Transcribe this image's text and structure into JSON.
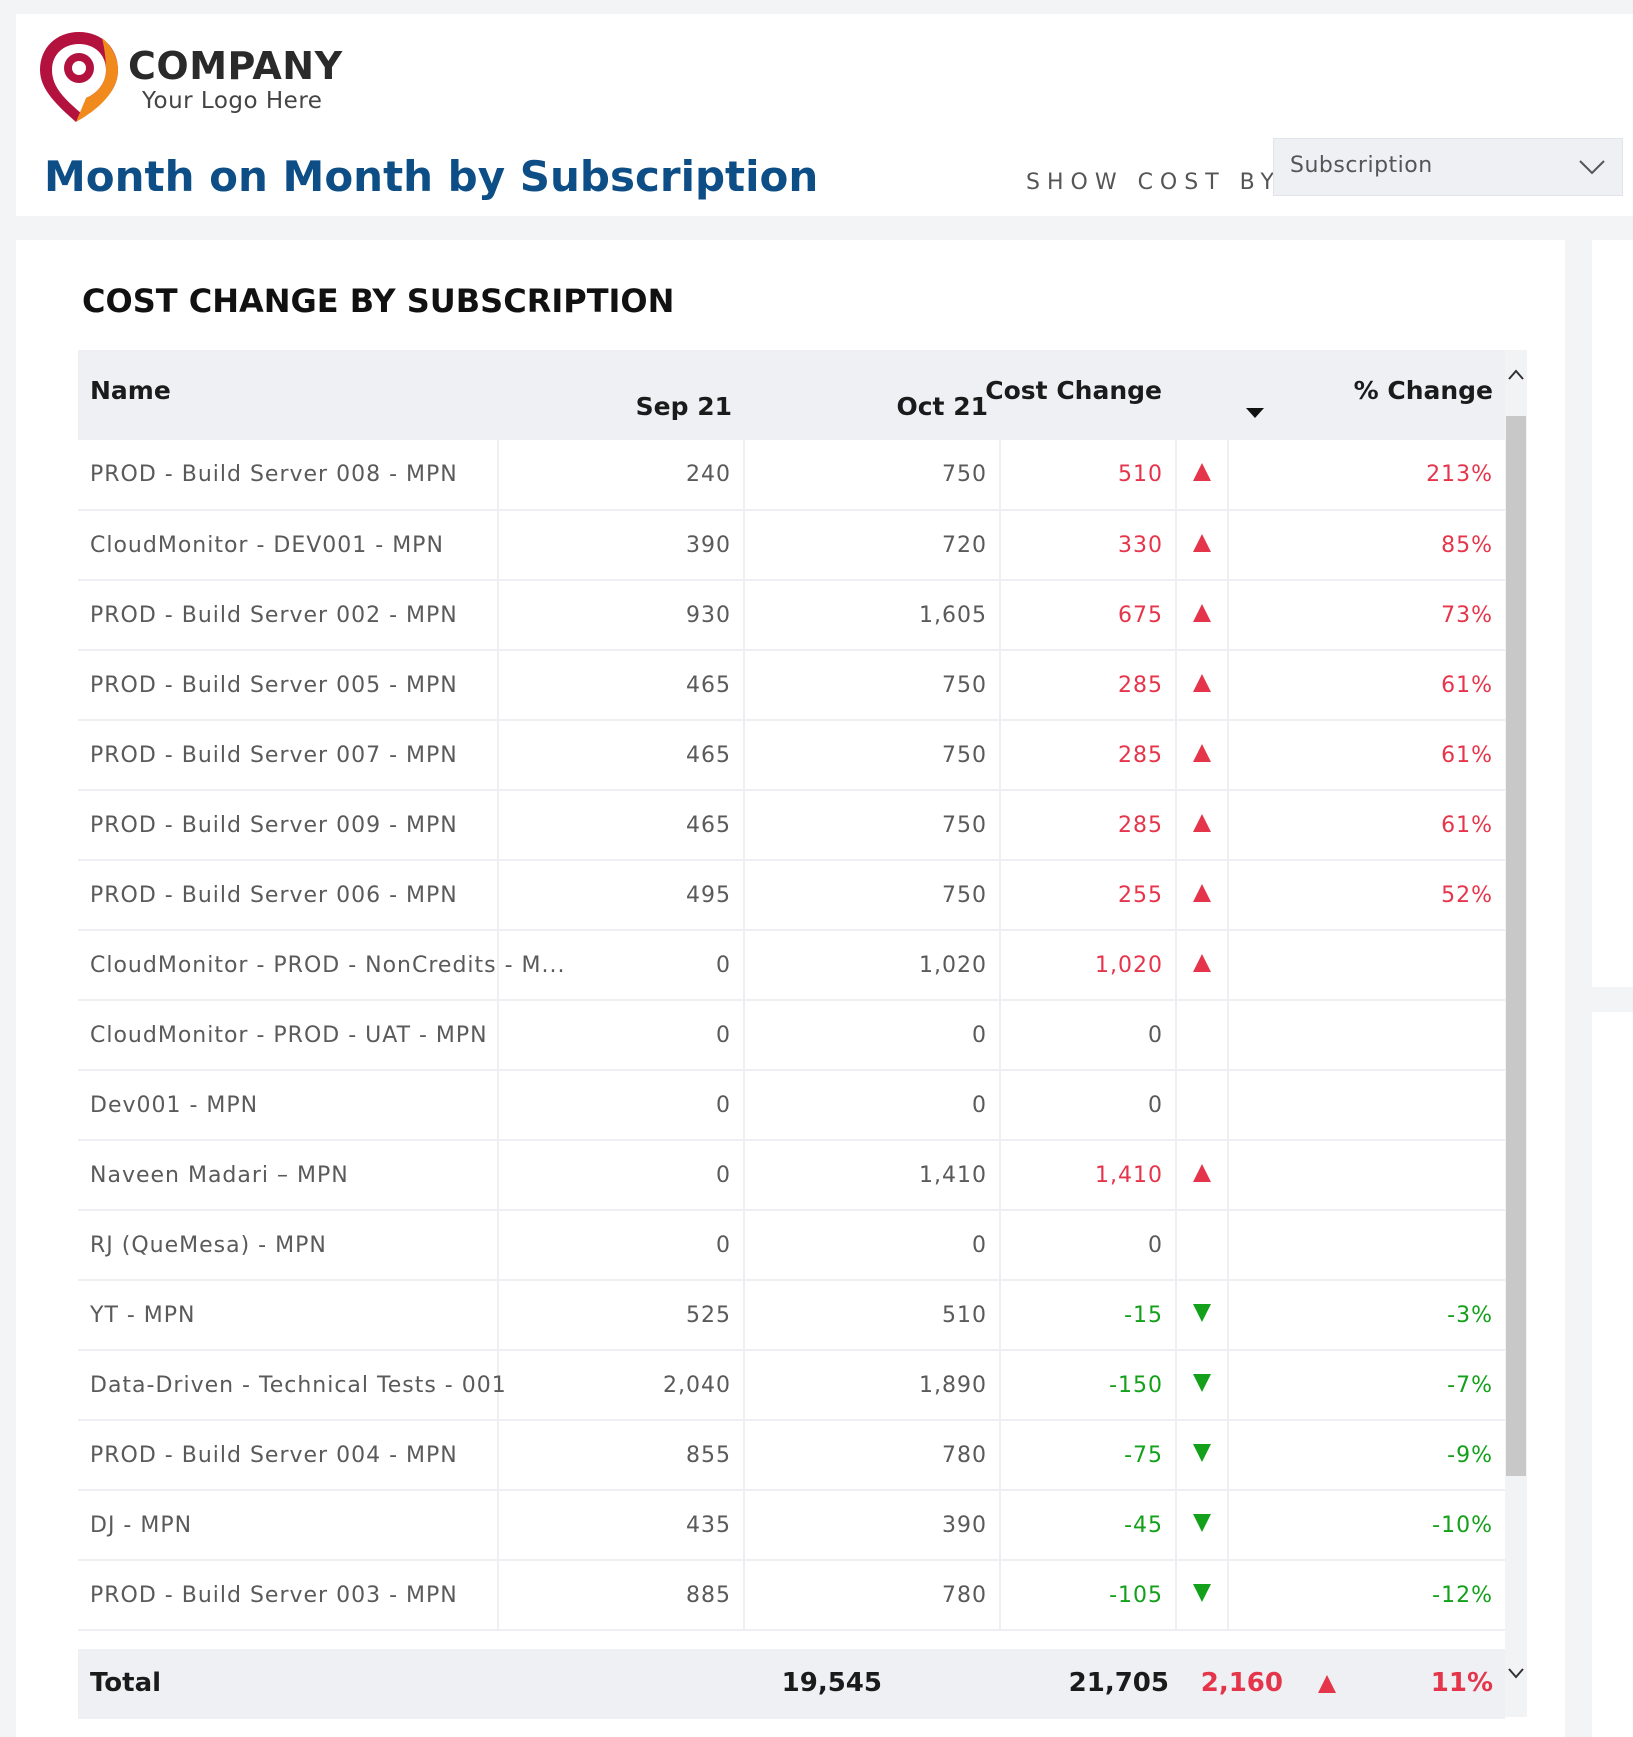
{
  "brand": {
    "name": "COMPANY",
    "tagline": "Your Logo Here"
  },
  "page": {
    "title": "Month on Month by Subscription"
  },
  "filter": {
    "label": "SHOW COST BY",
    "value": "Subscription"
  },
  "section": {
    "title": "COST CHANGE BY SUBSCRIPTION"
  },
  "table": {
    "headers": {
      "name": "Name",
      "sep": "Sep 21",
      "oct": "Oct 21",
      "cost_change": "Cost Change",
      "pct_change": "% Change"
    },
    "rows": [
      {
        "name": "PROD - Build Server 008 - MPN",
        "sep": "240",
        "oct": "750",
        "change": "510",
        "trend": "up",
        "pct": "213%"
      },
      {
        "name": "CloudMonitor - DEV001 - MPN",
        "sep": "390",
        "oct": "720",
        "change": "330",
        "trend": "up",
        "pct": "85%"
      },
      {
        "name": "PROD - Build Server 002 - MPN",
        "sep": "930",
        "oct": "1,605",
        "change": "675",
        "trend": "up",
        "pct": "73%"
      },
      {
        "name": "PROD - Build Server 005 - MPN",
        "sep": "465",
        "oct": "750",
        "change": "285",
        "trend": "up",
        "pct": "61%"
      },
      {
        "name": "PROD - Build Server 007 - MPN",
        "sep": "465",
        "oct": "750",
        "change": "285",
        "trend": "up",
        "pct": "61%"
      },
      {
        "name": "PROD - Build Server 009 - MPN",
        "sep": "465",
        "oct": "750",
        "change": "285",
        "trend": "up",
        "pct": "61%"
      },
      {
        "name": "PROD - Build Server 006 - MPN",
        "sep": "495",
        "oct": "750",
        "change": "255",
        "trend": "up",
        "pct": "52%"
      },
      {
        "name": "CloudMonitor - PROD - NonCredits - M...",
        "sep": "0",
        "oct": "1,020",
        "change": "1,020",
        "trend": "up",
        "pct": ""
      },
      {
        "name": "CloudMonitor - PROD - UAT - MPN",
        "sep": "0",
        "oct": "0",
        "change": "0",
        "trend": "none",
        "pct": ""
      },
      {
        "name": "Dev001 - MPN",
        "sep": "0",
        "oct": "0",
        "change": "0",
        "trend": "none",
        "pct": ""
      },
      {
        "name": "Naveen Madari – MPN",
        "sep": "0",
        "oct": "1,410",
        "change": "1,410",
        "trend": "up",
        "pct": ""
      },
      {
        "name": "RJ (QueMesa) - MPN",
        "sep": "0",
        "oct": "0",
        "change": "0",
        "trend": "none",
        "pct": ""
      },
      {
        "name": "YT - MPN",
        "sep": "525",
        "oct": "510",
        "change": "-15",
        "trend": "down",
        "pct": "-3%"
      },
      {
        "name": "Data-Driven - Technical Tests - 001",
        "sep": "2,040",
        "oct": "1,890",
        "change": "-150",
        "trend": "down",
        "pct": "-7%"
      },
      {
        "name": "PROD - Build Server 004 - MPN",
        "sep": "855",
        "oct": "780",
        "change": "-75",
        "trend": "down",
        "pct": "-9%"
      },
      {
        "name": "DJ - MPN",
        "sep": "435",
        "oct": "390",
        "change": "-45",
        "trend": "down",
        "pct": "-10%"
      },
      {
        "name": "PROD - Build Server 003 - MPN",
        "sep": "885",
        "oct": "780",
        "change": "-105",
        "trend": "down",
        "pct": "-12%"
      }
    ],
    "total": {
      "label": "Total",
      "sep": "19,545",
      "oct": "21,705",
      "change": "2,160",
      "trend": "up",
      "pct": "11%"
    }
  },
  "colors": {
    "title": "#0d4e86",
    "positive": "#e5354b",
    "negative": "#14a01b",
    "header_bg": "#eef0f4"
  }
}
